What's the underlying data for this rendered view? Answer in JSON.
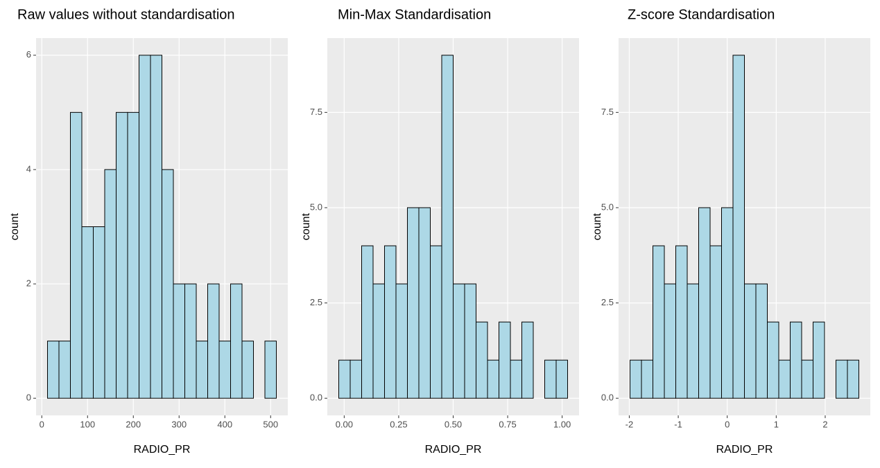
{
  "chart_data": [
    {
      "type": "histogram",
      "title": "Raw values without standardisation",
      "x_label": "RADIO_PR",
      "y_label": "count",
      "color": "#add8e6",
      "bins": [
        12.5,
        37.5,
        62.5,
        87.5,
        112.5,
        137.5,
        162.5,
        187.5,
        212.5,
        237.5,
        262.5,
        287.5,
        312.5,
        337.5,
        362.5,
        387.5,
        412.5,
        437.5,
        462.5,
        487.5,
        512.5
      ],
      "values": [
        1,
        1,
        5,
        3,
        3,
        4,
        5,
        5,
        6,
        6,
        4,
        2,
        2,
        1,
        2,
        1,
        2,
        1,
        0,
        1
      ],
      "xlim": [
        -12.5,
        537.5
      ],
      "xticks": [
        0,
        100,
        200,
        300,
        400,
        500
      ],
      "ylim": [
        -0.3,
        6.3
      ],
      "yticks": [
        0,
        2,
        4,
        6
      ],
      "grid": true
    },
    {
      "type": "histogram",
      "title": "Min-Max Standardisation",
      "x_label": "RADIO_PR",
      "y_label": "count",
      "color": "#add8e6",
      "bins": [
        -0.025,
        0.0275,
        0.08,
        0.1325,
        0.185,
        0.2375,
        0.29,
        0.3425,
        0.395,
        0.4475,
        0.5,
        0.5525,
        0.605,
        0.6575,
        0.71,
        0.7625,
        0.815,
        0.8675,
        0.92,
        0.9725,
        1.025
      ],
      "values": [
        1,
        1,
        4,
        3,
        4,
        3,
        5,
        5,
        4,
        9,
        3,
        3,
        2,
        1,
        2,
        1,
        2,
        0,
        1,
        1
      ],
      "xlim": [
        -0.0775,
        1.0775
      ],
      "xticks": [
        {
          "value": 0,
          "label": "0.00"
        },
        {
          "value": 0.25,
          "label": "0.25"
        },
        {
          "value": 0.5,
          "label": "0.50"
        },
        {
          "value": 0.75,
          "label": "0.75"
        },
        {
          "value": 1,
          "label": "1.00"
        }
      ],
      "ylim": [
        -0.45,
        9.45
      ],
      "yticks": [
        {
          "value": 0,
          "label": "0.0"
        },
        {
          "value": 2.5,
          "label": "2.5"
        },
        {
          "value": 5,
          "label": "5.0"
        },
        {
          "value": 7.5,
          "label": "7.5"
        }
      ],
      "grid": true
    },
    {
      "type": "histogram",
      "title": "Z-score Standardisation",
      "x_label": "RADIO_PR",
      "y_label": "count",
      "color": "#add8e6",
      "bins": [
        -1.985,
        -1.7514,
        -1.5178,
        -1.2842,
        -1.0506,
        -0.817,
        -0.5834,
        -0.3498,
        -0.1162,
        0.1174,
        0.351,
        0.5846,
        0.8182,
        1.0518,
        1.2854,
        1.519,
        1.7526,
        1.9862,
        2.2198,
        2.4534,
        2.687
      ],
      "values": [
        1,
        1,
        4,
        3,
        4,
        3,
        5,
        4,
        5,
        9,
        3,
        3,
        2,
        1,
        2,
        1,
        2,
        0,
        1,
        1
      ],
      "xlim": [
        -2.2186,
        2.9206
      ],
      "xticks": [
        -2,
        -1,
        0,
        1,
        2
      ],
      "ylim": [
        -0.45,
        9.45
      ],
      "yticks": [
        {
          "value": 0,
          "label": "0.0"
        },
        {
          "value": 2.5,
          "label": "2.5"
        },
        {
          "value": 5,
          "label": "5.0"
        },
        {
          "value": 7.5,
          "label": "7.5"
        }
      ],
      "grid": true
    }
  ]
}
